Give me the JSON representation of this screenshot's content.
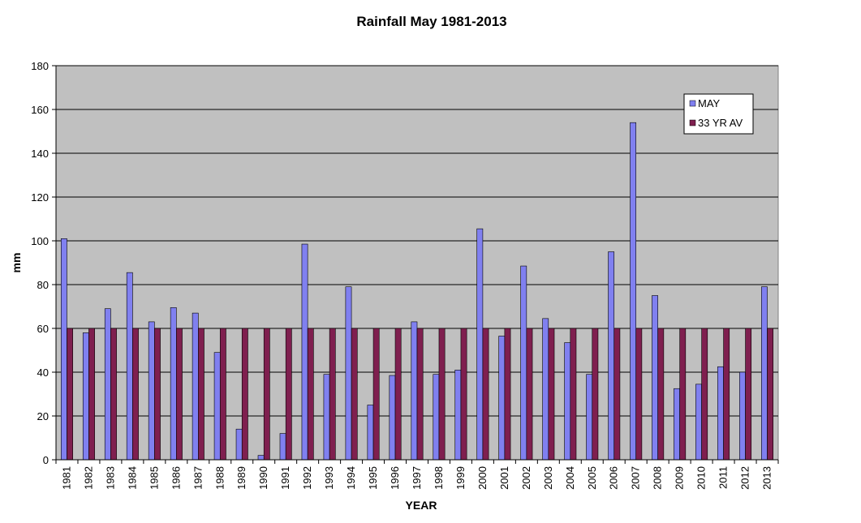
{
  "chart_data": {
    "type": "bar",
    "title": "Rainfall May 1981-2013",
    "xlabel": "YEAR",
    "ylabel": "mm",
    "ylim": [
      0,
      180
    ],
    "yticks": [
      0,
      20,
      40,
      60,
      80,
      100,
      120,
      140,
      160,
      180
    ],
    "grid": true,
    "legend_position": "top-right",
    "categories": [
      "1981",
      "1982",
      "1983",
      "1984",
      "1985",
      "1986",
      "1987",
      "1988",
      "1989",
      "1990",
      "1991",
      "1992",
      "1993",
      "1994",
      "1995",
      "1996",
      "1997",
      "1998",
      "1999",
      "2000",
      "2001",
      "2002",
      "2003",
      "2004",
      "2005",
      "2006",
      "2007",
      "2008",
      "2009",
      "2010",
      "2011",
      "2012",
      "2013"
    ],
    "series": [
      {
        "name": "MAY",
        "color": "#8080f0",
        "values": [
          101,
          58,
          69,
          85.5,
          63,
          69.5,
          67,
          49,
          14,
          2,
          12,
          98.5,
          39,
          79,
          25,
          38.5,
          63,
          39,
          41,
          105.5,
          56.5,
          88.5,
          64.5,
          53.5,
          39,
          95,
          154,
          75,
          32.5,
          34.5,
          42.5,
          40,
          79
        ]
      },
      {
        "name": "33 YR AV",
        "color": "#7f1f4f",
        "values": [
          60,
          60,
          60,
          60,
          60,
          60,
          60,
          60,
          60,
          60,
          60,
          60,
          60,
          60,
          60,
          60,
          60,
          60,
          60,
          60,
          60,
          60,
          60,
          60,
          60,
          60,
          60,
          60,
          60,
          60,
          60,
          60,
          60
        ]
      }
    ]
  }
}
